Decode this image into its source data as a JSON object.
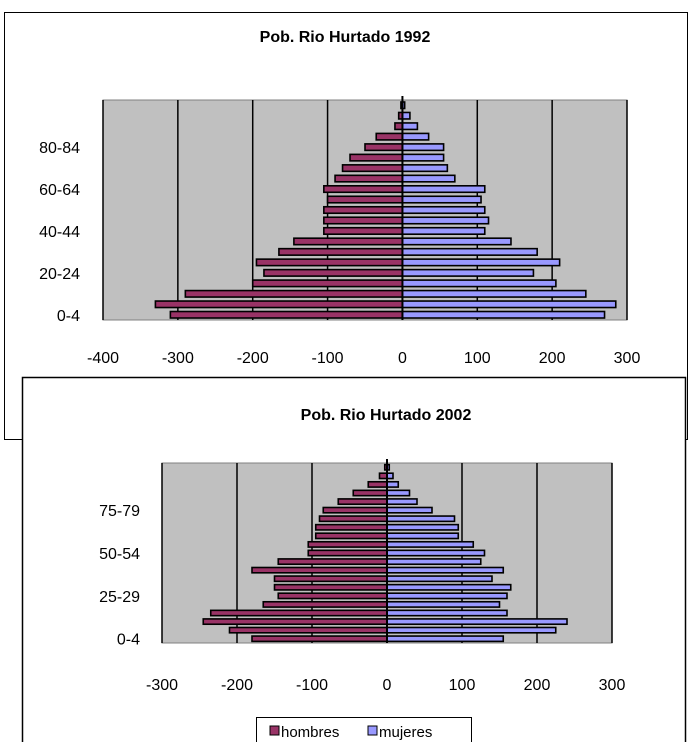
{
  "colors": {
    "plot_background": "#c0c0c0",
    "bar_stroke": "#000000",
    "hombres_fill": "#993366",
    "mujeres_fill": "#9999ff"
  },
  "legend": {
    "hombres": "hombres",
    "mujeres": "mujeres"
  },
  "chart_data": [
    {
      "type": "bar",
      "orientation": "horizontal",
      "title": "Pob. Rio Hurtado 1992",
      "xlim": [
        -400,
        300
      ],
      "xticks": [
        "-400",
        "-300",
        "-200",
        "-100",
        "0",
        "100",
        "200",
        "300"
      ],
      "yticks_shown": [
        "80-84",
        "60-64",
        "40-44",
        "20-24",
        "0-4"
      ],
      "grid": "vertical",
      "categories": [
        "0-4",
        "5-9",
        "10-14",
        "15-19",
        "20-24",
        "25-29",
        "30-34",
        "35-39",
        "40-44",
        "45-49",
        "50-54",
        "55-59",
        "60-64",
        "65-69",
        "70-74",
        "75-79",
        "80-84",
        "85-89",
        "90-94",
        "95-99",
        "100+"
      ],
      "series": [
        {
          "name": "hombres",
          "values": [
            -310,
            -330,
            -290,
            -200,
            -185,
            -195,
            -165,
            -145,
            -105,
            -105,
            -105,
            -100,
            -105,
            -90,
            -80,
            -70,
            -50,
            -35,
            -10,
            -5,
            -2
          ]
        },
        {
          "name": "mujeres",
          "values": [
            270,
            285,
            245,
            205,
            175,
            210,
            180,
            145,
            110,
            115,
            110,
            105,
            110,
            70,
            60,
            55,
            55,
            35,
            20,
            10,
            3
          ]
        }
      ]
    },
    {
      "type": "bar",
      "orientation": "horizontal",
      "title": "Pob. Rio Hurtado 2002",
      "xlim": [
        -300,
        300
      ],
      "xticks": [
        "-300",
        "-200",
        "-100",
        "0",
        "100",
        "200",
        "300"
      ],
      "yticks_shown": [
        "75-79",
        "50-54",
        "25-29",
        "0-4"
      ],
      "grid": "vertical",
      "legend": "bottom",
      "categories": [
        "0-4",
        "5-9",
        "10-14",
        "15-19",
        "20-24",
        "25-29",
        "30-34",
        "35-39",
        "40-44",
        "45-49",
        "50-54",
        "55-59",
        "60-64",
        "65-69",
        "70-74",
        "75-79",
        "80-84",
        "85-89",
        "90-94",
        "95-99",
        "100+"
      ],
      "series": [
        {
          "name": "hombres",
          "values": [
            -180,
            -210,
            -245,
            -235,
            -165,
            -145,
            -150,
            -150,
            -180,
            -145,
            -105,
            -105,
            -95,
            -95,
            -90,
            -85,
            -65,
            -45,
            -25,
            -10,
            -3
          ]
        },
        {
          "name": "mujeres",
          "values": [
            155,
            225,
            240,
            160,
            150,
            160,
            165,
            140,
            155,
            125,
            130,
            115,
            95,
            95,
            90,
            60,
            40,
            30,
            15,
            8,
            3
          ]
        }
      ]
    }
  ]
}
